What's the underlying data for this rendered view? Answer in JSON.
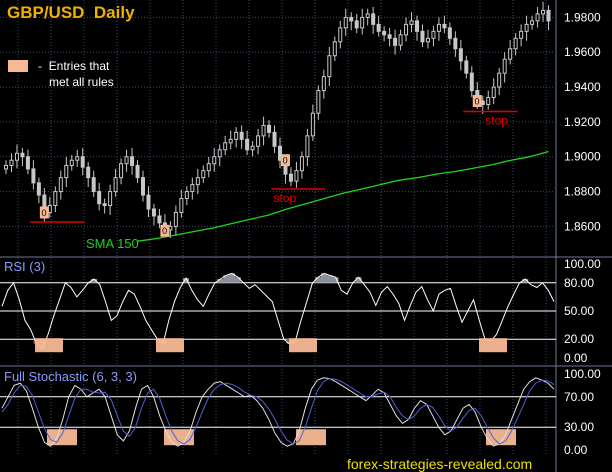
{
  "colors": {
    "background": "#000000",
    "grid": "#3a4a6a",
    "price": "#c8c8c8",
    "sma": "#1fd31f",
    "marker": "#f7b893",
    "stop_line": "#e00000",
    "title": "#f0b000",
    "label": "#ffffff",
    "watermark": "#f0e000",
    "indicator_line": "#ffffff",
    "stoch_d": "#5060d0",
    "axis_text": "#ffffff"
  },
  "chart_data": [
    {
      "type": "candlestick",
      "title": "GBP/USD  Daily",
      "legend": {
        "label": "-  Entries that\n   met all rules",
        "label_lines": [
          "-  Entries that",
          "met all rules"
        ],
        "placement": "top-left"
      },
      "ylim": [
        1.84,
        1.99
      ],
      "y_ticks": [
        "1.9800",
        "1.9600",
        "1.9400",
        "1.9200",
        "1.9000",
        "1.8800",
        "1.8600"
      ],
      "y_tick_values": [
        1.98,
        1.96,
        1.94,
        1.92,
        1.9,
        1.88,
        1.86
      ],
      "grid": true,
      "sma_label": "SMA 150",
      "sma": [
        1.8515,
        1.853,
        1.855,
        1.857,
        1.859,
        1.8615,
        1.864,
        1.8665,
        1.87,
        1.873,
        1.876,
        1.879,
        1.8815,
        1.884,
        1.8865,
        1.888,
        1.89,
        1.8915,
        1.8935,
        1.8955,
        1.898,
        1.9,
        1.903
      ],
      "close": [
        1.895,
        1.898,
        1.902,
        1.9,
        1.893,
        1.885,
        1.878,
        1.868,
        1.872,
        1.88,
        1.888,
        1.895,
        1.898,
        1.9,
        1.894,
        1.888,
        1.88,
        1.873,
        1.872,
        1.88,
        1.888,
        1.896,
        1.9,
        1.895,
        1.888,
        1.878,
        1.87,
        1.866,
        1.862,
        1.858,
        1.86,
        1.868,
        1.876,
        1.88,
        1.884,
        1.888,
        1.892,
        1.896,
        1.9,
        1.904,
        1.908,
        1.91,
        1.914,
        1.91,
        1.904,
        1.906,
        1.912,
        1.918,
        1.914,
        1.906,
        1.898,
        1.89,
        1.886,
        1.892,
        1.9,
        1.912,
        1.925,
        1.938,
        1.946,
        1.958,
        1.966,
        1.974,
        1.98,
        1.978,
        1.974,
        1.98,
        1.982,
        1.976,
        1.972,
        1.97,
        1.968,
        1.964,
        1.97,
        1.976,
        1.978,
        1.972,
        1.966,
        1.968,
        1.972,
        1.976,
        1.974,
        1.968,
        1.962,
        1.955,
        1.948,
        1.938,
        1.932,
        1.93,
        1.934,
        1.94,
        1.948,
        1.956,
        1.962,
        1.968,
        1.972,
        1.976,
        1.978,
        1.982,
        1.984,
        1.978
      ],
      "entries": [
        {
          "index": 7,
          "price": 1.868,
          "stop": 1.8625
        },
        {
          "index": 29,
          "price": 1.8575,
          "stop": null
        },
        {
          "index": 51,
          "price": 1.898,
          "stop": 1.8815,
          "stop_label": "stop"
        },
        {
          "index": 86,
          "price": 1.932,
          "stop": 1.926,
          "stop_label": "stop"
        }
      ],
      "marker_text": "0"
    },
    {
      "type": "line",
      "title": "RSI (3)",
      "ylim": [
        0,
        100
      ],
      "y_ticks": [
        "100.00",
        "80.00",
        "50.00",
        "20.00",
        "0.00"
      ],
      "y_tick_values": [
        100,
        80,
        50,
        20,
        0
      ],
      "levels": [
        80,
        50,
        20
      ],
      "grid": true,
      "values": [
        55,
        72,
        80,
        62,
        40,
        30,
        15,
        10,
        25,
        45,
        62,
        80,
        75,
        65,
        72,
        80,
        84,
        78,
        60,
        40,
        45,
        60,
        72,
        68,
        55,
        40,
        30,
        20,
        15,
        40,
        60,
        75,
        85,
        72,
        62,
        55,
        68,
        80,
        84,
        88,
        90,
        86,
        80,
        74,
        78,
        72,
        66,
        60,
        40,
        20,
        15,
        18,
        40,
        60,
        80,
        86,
        90,
        88,
        86,
        72,
        68,
        80,
        86,
        78,
        70,
        56,
        70,
        76,
        68,
        58,
        40,
        56,
        70,
        76,
        62,
        50,
        68,
        72,
        74,
        55,
        38,
        50,
        62,
        40,
        20,
        18,
        25,
        40,
        55,
        68,
        80,
        84,
        78,
        75,
        80,
        72,
        60
      ]
    },
    {
      "type": "line",
      "title": "Full Stochastic (6, 3, 3)",
      "ylim": [
        0,
        100
      ],
      "y_ticks": [
        "100.00",
        "70.00",
        "30.00",
        "0.00"
      ],
      "y_tick_values": [
        100,
        70,
        30,
        0
      ],
      "levels": [
        70,
        30
      ],
      "grid": true,
      "series": [
        {
          "values": [
            55,
            70,
            85,
            88,
            78,
            55,
            30,
            10,
            5,
            15,
            40,
            70,
            85,
            80,
            70,
            75,
            80,
            70,
            45,
            20,
            12,
            25,
            55,
            80,
            85,
            70,
            45,
            25,
            10,
            5,
            10,
            25,
            50,
            70,
            80,
            88,
            90,
            85,
            80,
            75,
            70,
            72,
            65,
            55,
            40,
            22,
            10,
            5,
            8,
            25,
            55,
            80,
            92,
            95,
            94,
            90,
            85,
            80,
            75,
            70,
            65,
            72,
            80,
            75,
            60,
            45,
            35,
            40,
            55,
            65,
            60,
            45,
            30,
            20,
            25,
            40,
            55,
            60,
            50,
            30,
            15,
            5,
            8,
            20,
            40,
            60,
            80,
            90,
            95,
            92,
            88,
            80
          ]
        },
        {
          "values": [
            50,
            60,
            75,
            85,
            84,
            72,
            50,
            28,
            14,
            10,
            22,
            45,
            68,
            80,
            80,
            76,
            75,
            76,
            66,
            45,
            25,
            18,
            30,
            55,
            75,
            80,
            68,
            45,
            25,
            12,
            8,
            14,
            30,
            50,
            68,
            80,
            86,
            88,
            86,
            82,
            76,
            72,
            70,
            64,
            54,
            40,
            25,
            13,
            8,
            12,
            30,
            55,
            78,
            90,
            94,
            93,
            90,
            85,
            80,
            75,
            70,
            70,
            74,
            76,
            70,
            56,
            45,
            40,
            45,
            55,
            60,
            56,
            45,
            32,
            25,
            30,
            42,
            52,
            55,
            45,
            30,
            16,
            8,
            12,
            25,
            42,
            60,
            78,
            88,
            92,
            91,
            86
          ]
        }
      ]
    }
  ],
  "watermark": "forex-strategies-revealed.com"
}
